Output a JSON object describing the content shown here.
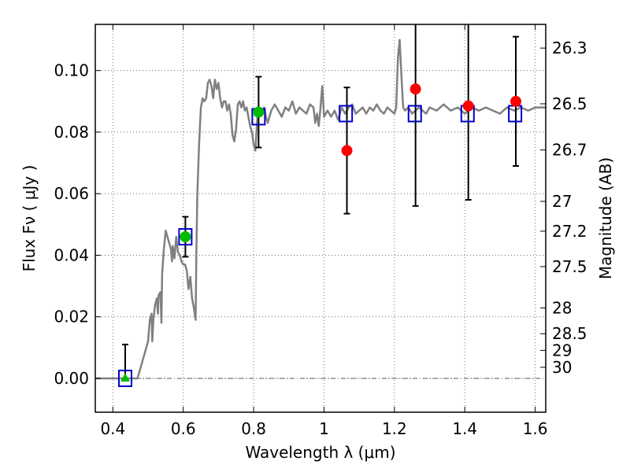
{
  "chart_data": {
    "type": "scatter",
    "xlabel": "Wavelength  λ (μm)",
    "ylabel": "Flux  Fν  ( μJy )",
    "ylabel_right": "Magnitude (AB)",
    "xlim": [
      0.35,
      1.63
    ],
    "ylim": [
      -0.011,
      0.115
    ],
    "grid": true,
    "x_ticks": [
      {
        "value": 0.4,
        "label": "0.4"
      },
      {
        "value": 0.6,
        "label": "0.6"
      },
      {
        "value": 0.8,
        "label": "0.8"
      },
      {
        "value": 1.0,
        "label": "1"
      },
      {
        "value": 1.2,
        "label": "1.2"
      },
      {
        "value": 1.4,
        "label": "1.4"
      },
      {
        "value": 1.6,
        "label": "1.6"
      }
    ],
    "y_ticks": [
      {
        "value": 0.0,
        "label": "0.00"
      },
      {
        "value": 0.02,
        "label": "0.02"
      },
      {
        "value": 0.04,
        "label": "0.04"
      },
      {
        "value": 0.06,
        "label": "0.06"
      },
      {
        "value": 0.08,
        "label": "0.08"
      },
      {
        "value": 0.1,
        "label": "0.10"
      }
    ],
    "right_ticks": [
      {
        "flux": 0.1073,
        "label": "26.3"
      },
      {
        "flux": 0.0892,
        "label": "26.5"
      },
      {
        "flux": 0.0742,
        "label": "26.7"
      },
      {
        "flux": 0.0575,
        "label": "27"
      },
      {
        "flux": 0.0478,
        "label": "27.2"
      },
      {
        "flux": 0.0363,
        "label": "27.5"
      },
      {
        "flux": 0.0229,
        "label": "28"
      },
      {
        "flux": 0.0145,
        "label": "28.5"
      },
      {
        "flux": 0.0091,
        "label": "29"
      },
      {
        "flux": 0.0036,
        "label": "30"
      }
    ],
    "zero_line": 0.0,
    "model_spectrum": {
      "color": "#808080",
      "points": [
        [
          0.35,
          0.0
        ],
        [
          0.47,
          0.0
        ],
        [
          0.48,
          0.004
        ],
        [
          0.49,
          0.008
        ],
        [
          0.5,
          0.012
        ],
        [
          0.505,
          0.019
        ],
        [
          0.51,
          0.021
        ],
        [
          0.512,
          0.012
        ],
        [
          0.515,
          0.019
        ],
        [
          0.52,
          0.024
        ],
        [
          0.525,
          0.026
        ],
        [
          0.528,
          0.021
        ],
        [
          0.53,
          0.027
        ],
        [
          0.535,
          0.028
        ],
        [
          0.538,
          0.018
        ],
        [
          0.54,
          0.034
        ],
        [
          0.545,
          0.042
        ],
        [
          0.55,
          0.048
        ],
        [
          0.555,
          0.046
        ],
        [
          0.56,
          0.044
        ],
        [
          0.565,
          0.042
        ],
        [
          0.568,
          0.038
        ],
        [
          0.57,
          0.043
        ],
        [
          0.575,
          0.039
        ],
        [
          0.58,
          0.046
        ],
        [
          0.585,
          0.041
        ],
        [
          0.59,
          0.04
        ],
        [
          0.595,
          0.038
        ],
        [
          0.6,
          0.037
        ],
        [
          0.605,
          0.037
        ],
        [
          0.61,
          0.035
        ],
        [
          0.615,
          0.029
        ],
        [
          0.62,
          0.033
        ],
        [
          0.625,
          0.026
        ],
        [
          0.63,
          0.023
        ],
        [
          0.635,
          0.019
        ],
        [
          0.637,
          0.04
        ],
        [
          0.64,
          0.06
        ],
        [
          0.645,
          0.076
        ],
        [
          0.65,
          0.088
        ],
        [
          0.655,
          0.091
        ],
        [
          0.66,
          0.09
        ],
        [
          0.665,
          0.091
        ],
        [
          0.67,
          0.096
        ],
        [
          0.675,
          0.097
        ],
        [
          0.68,
          0.095
        ],
        [
          0.685,
          0.091
        ],
        [
          0.69,
          0.097
        ],
        [
          0.695,
          0.094
        ],
        [
          0.7,
          0.096
        ],
        [
          0.705,
          0.091
        ],
        [
          0.71,
          0.088
        ],
        [
          0.715,
          0.09
        ],
        [
          0.72,
          0.09
        ],
        [
          0.725,
          0.087
        ],
        [
          0.73,
          0.089
        ],
        [
          0.735,
          0.086
        ],
        [
          0.74,
          0.079
        ],
        [
          0.745,
          0.077
        ],
        [
          0.75,
          0.081
        ],
        [
          0.755,
          0.089
        ],
        [
          0.76,
          0.09
        ],
        [
          0.765,
          0.088
        ],
        [
          0.77,
          0.09
        ],
        [
          0.775,
          0.087
        ],
        [
          0.78,
          0.088
        ],
        [
          0.785,
          0.085
        ],
        [
          0.79,
          0.082
        ],
        [
          0.795,
          0.08
        ],
        [
          0.8,
          0.076
        ],
        [
          0.805,
          0.074
        ],
        [
          0.81,
          0.084
        ],
        [
          0.815,
          0.088
        ],
        [
          0.82,
          0.087
        ],
        [
          0.825,
          0.086
        ],
        [
          0.83,
          0.088
        ],
        [
          0.835,
          0.085
        ],
        [
          0.84,
          0.083
        ],
        [
          0.85,
          0.087
        ],
        [
          0.86,
          0.089
        ],
        [
          0.87,
          0.087
        ],
        [
          0.88,
          0.085
        ],
        [
          0.89,
          0.088
        ],
        [
          0.9,
          0.087
        ],
        [
          0.91,
          0.09
        ],
        [
          0.92,
          0.086
        ],
        [
          0.93,
          0.088
        ],
        [
          0.94,
          0.087
        ],
        [
          0.95,
          0.086
        ],
        [
          0.96,
          0.089
        ],
        [
          0.97,
          0.088
        ],
        [
          0.975,
          0.083
        ],
        [
          0.98,
          0.086
        ],
        [
          0.985,
          0.082
        ],
        [
          0.99,
          0.088
        ],
        [
          0.995,
          0.095
        ],
        [
          1.0,
          0.085
        ],
        [
          1.01,
          0.087
        ],
        [
          1.02,
          0.085
        ],
        [
          1.03,
          0.087
        ],
        [
          1.04,
          0.084
        ],
        [
          1.05,
          0.088
        ],
        [
          1.06,
          0.086
        ],
        [
          1.07,
          0.088
        ],
        [
          1.08,
          0.089
        ],
        [
          1.09,
          0.086
        ],
        [
          1.1,
          0.087
        ],
        [
          1.11,
          0.088
        ],
        [
          1.12,
          0.086
        ],
        [
          1.13,
          0.088
        ],
        [
          1.14,
          0.087
        ],
        [
          1.15,
          0.089
        ],
        [
          1.16,
          0.087
        ],
        [
          1.17,
          0.086
        ],
        [
          1.18,
          0.088
        ],
        [
          1.19,
          0.087
        ],
        [
          1.2,
          0.086
        ],
        [
          1.205,
          0.088
        ],
        [
          1.21,
          0.104
        ],
        [
          1.215,
          0.11
        ],
        [
          1.22,
          0.098
        ],
        [
          1.225,
          0.088
        ],
        [
          1.23,
          0.087
        ],
        [
          1.24,
          0.088
        ],
        [
          1.25,
          0.086
        ],
        [
          1.26,
          0.087
        ],
        [
          1.27,
          0.088
        ],
        [
          1.28,
          0.087
        ],
        [
          1.29,
          0.086
        ],
        [
          1.3,
          0.088
        ],
        [
          1.32,
          0.087
        ],
        [
          1.34,
          0.089
        ],
        [
          1.36,
          0.087
        ],
        [
          1.38,
          0.088
        ],
        [
          1.4,
          0.086
        ],
        [
          1.42,
          0.088
        ],
        [
          1.44,
          0.087
        ],
        [
          1.46,
          0.088
        ],
        [
          1.48,
          0.087
        ],
        [
          1.5,
          0.086
        ],
        [
          1.52,
          0.088
        ],
        [
          1.54,
          0.087
        ],
        [
          1.56,
          0.088
        ],
        [
          1.58,
          0.087
        ],
        [
          1.6,
          0.088
        ],
        [
          1.63,
          0.088
        ]
      ]
    },
    "model_photometry": {
      "marker": "open-square",
      "color": "#0000cc",
      "points": [
        {
          "x": 0.435,
          "y": 0.0
        },
        {
          "x": 0.606,
          "y": 0.046
        },
        {
          "x": 0.814,
          "y": 0.085
        },
        {
          "x": 1.062,
          "y": 0.086
        },
        {
          "x": 1.258,
          "y": 0.086
        },
        {
          "x": 1.408,
          "y": 0.086
        },
        {
          "x": 1.543,
          "y": 0.086
        }
      ]
    },
    "observed_hst_optical": {
      "marker": "filled-circle",
      "color": "#00bb00",
      "points": [
        {
          "x": 0.435,
          "y": 0.0,
          "yerr_low": 0.0,
          "yerr_high": 0.011,
          "marker": "triangle"
        },
        {
          "x": 0.606,
          "y": 0.046,
          "yerr_low": 0.0065,
          "yerr_high": 0.0065
        },
        {
          "x": 0.814,
          "y": 0.0865,
          "yerr_low": 0.0115,
          "yerr_high": 0.0115
        }
      ]
    },
    "observed_hst_ir": {
      "marker": "filled-circle",
      "color": "#ff0000",
      "points": [
        {
          "x": 1.065,
          "y": 0.074,
          "yerr_low": 0.0205,
          "yerr_high": 0.0205
        },
        {
          "x": 1.26,
          "y": 0.094,
          "yerr_low": 0.038,
          "yerr_high": 0.038
        },
        {
          "x": 1.41,
          "y": 0.0885,
          "yerr_low": 0.0305,
          "yerr_high": 0.0305
        },
        {
          "x": 1.545,
          "y": 0.09,
          "yerr_low": 0.021,
          "yerr_high": 0.021
        }
      ]
    }
  }
}
